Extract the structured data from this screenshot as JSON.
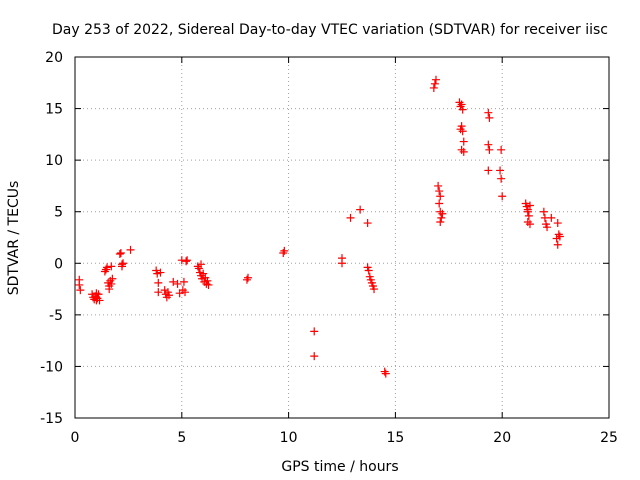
{
  "chart_data": {
    "type": "scatter",
    "title": "Day 253 of 2022, Sidereal Day-to-day VTEC variation (SDTVAR) for receiver iisc",
    "xlabel": "GPS time / hours",
    "ylabel": "SDTVAR / TECUs",
    "xlim": [
      0,
      25
    ],
    "ylim": [
      -15,
      20
    ],
    "xticks": [
      0,
      5,
      10,
      15,
      20,
      25
    ],
    "yticks": [
      -15,
      -10,
      -5,
      0,
      5,
      10,
      15,
      20
    ],
    "xtick_labels": [
      "0",
      "5",
      "10",
      "15",
      "20",
      "25"
    ],
    "ytick_labels": [
      "-15",
      "-10",
      "-5",
      "0",
      "5",
      "10",
      "15",
      "20"
    ],
    "grid": true,
    "marker": "+",
    "series": [
      {
        "name": "SDTVAR",
        "color": "#ff0000",
        "points": [
          [
            0.2,
            -1.6
          ],
          [
            0.2,
            -2.1
          ],
          [
            0.25,
            -2.6
          ],
          [
            0.8,
            -3.0
          ],
          [
            0.85,
            -3.3
          ],
          [
            0.9,
            -3.5
          ],
          [
            0.95,
            -3.2
          ],
          [
            1.0,
            -3.6
          ],
          [
            1.05,
            -3.4
          ],
          [
            1.0,
            -2.9
          ],
          [
            1.1,
            -3.0
          ],
          [
            1.15,
            -3.6
          ],
          [
            1.4,
            -0.8
          ],
          [
            1.45,
            -0.6
          ],
          [
            1.5,
            -0.4
          ],
          [
            1.55,
            -1.9
          ],
          [
            1.6,
            -2.2
          ],
          [
            1.6,
            -2.5
          ],
          [
            1.65,
            -1.7
          ],
          [
            1.7,
            -2.0
          ],
          [
            1.7,
            -0.3
          ],
          [
            1.75,
            -1.5
          ],
          [
            2.1,
            0.9
          ],
          [
            2.15,
            1.0
          ],
          [
            2.2,
            -0.1
          ],
          [
            2.25,
            0.0
          ],
          [
            2.2,
            -0.3
          ],
          [
            2.6,
            1.3
          ],
          [
            3.8,
            -0.7
          ],
          [
            3.85,
            -1.0
          ],
          [
            3.9,
            -1.9
          ],
          [
            3.9,
            -2.8
          ],
          [
            4.0,
            -0.9
          ],
          [
            4.2,
            -2.6
          ],
          [
            4.25,
            -3.0
          ],
          [
            4.3,
            -3.3
          ],
          [
            4.35,
            -2.8
          ],
          [
            4.4,
            -3.1
          ],
          [
            4.6,
            -1.8
          ],
          [
            4.8,
            -2.0
          ],
          [
            4.9,
            -2.9
          ],
          [
            5.0,
            0.3
          ],
          [
            5.05,
            -2.6
          ],
          [
            5.1,
            -1.8
          ],
          [
            5.15,
            -2.8
          ],
          [
            5.2,
            0.2
          ],
          [
            5.25,
            0.3
          ],
          [
            5.75,
            -0.3
          ],
          [
            5.8,
            -0.5
          ],
          [
            5.85,
            -0.9
          ],
          [
            5.9,
            -1.2
          ],
          [
            5.95,
            -1.5
          ],
          [
            6.0,
            -1.0
          ],
          [
            6.05,
            -1.8
          ],
          [
            6.1,
            -1.4
          ],
          [
            6.15,
            -2.0
          ],
          [
            6.2,
            -1.7
          ],
          [
            6.25,
            -2.1
          ],
          [
            5.9,
            -0.1
          ],
          [
            8.05,
            -1.6
          ],
          [
            8.1,
            -1.4
          ],
          [
            9.75,
            1.0
          ],
          [
            9.8,
            1.2
          ],
          [
            11.2,
            -6.6
          ],
          [
            11.2,
            -9.0
          ],
          [
            12.5,
            0.5
          ],
          [
            12.5,
            0.0
          ],
          [
            12.9,
            4.4
          ],
          [
            13.35,
            5.2
          ],
          [
            13.7,
            3.9
          ],
          [
            13.7,
            -0.4
          ],
          [
            13.75,
            -0.7
          ],
          [
            13.8,
            -1.3
          ],
          [
            13.85,
            -1.6
          ],
          [
            13.9,
            -1.9
          ],
          [
            13.95,
            -2.2
          ],
          [
            14.0,
            -2.5
          ],
          [
            14.5,
            -10.5
          ],
          [
            14.55,
            -10.7
          ],
          [
            16.8,
            17.0
          ],
          [
            16.85,
            17.4
          ],
          [
            16.9,
            17.8
          ],
          [
            17.0,
            7.5
          ],
          [
            17.05,
            7.0
          ],
          [
            17.1,
            6.5
          ],
          [
            17.05,
            5.8
          ],
          [
            17.1,
            5.0
          ],
          [
            17.15,
            4.4
          ],
          [
            17.1,
            4.0
          ],
          [
            17.2,
            4.8
          ],
          [
            18.0,
            15.6
          ],
          [
            18.05,
            15.2
          ],
          [
            18.1,
            15.4
          ],
          [
            18.15,
            14.9
          ],
          [
            18.1,
            13.3
          ],
          [
            18.05,
            13.0
          ],
          [
            18.15,
            12.8
          ],
          [
            18.2,
            11.8
          ],
          [
            18.1,
            11.0
          ],
          [
            18.2,
            10.8
          ],
          [
            19.35,
            14.6
          ],
          [
            19.4,
            14.1
          ],
          [
            19.35,
            11.5
          ],
          [
            19.4,
            11.0
          ],
          [
            19.35,
            9.0
          ],
          [
            19.95,
            11.0
          ],
          [
            19.9,
            9.0
          ],
          [
            19.95,
            8.2
          ],
          [
            20.0,
            6.5
          ],
          [
            21.1,
            5.8
          ],
          [
            21.15,
            5.5
          ],
          [
            21.2,
            5.0
          ],
          [
            21.25,
            4.6
          ],
          [
            21.2,
            4.0
          ],
          [
            21.3,
            3.8
          ],
          [
            21.2,
            5.2
          ],
          [
            21.3,
            5.6
          ],
          [
            21.95,
            5.0
          ],
          [
            22.0,
            4.4
          ],
          [
            22.05,
            3.8
          ],
          [
            22.1,
            3.5
          ],
          [
            22.3,
            4.4
          ],
          [
            22.6,
            3.9
          ],
          [
            22.65,
            2.8
          ],
          [
            22.55,
            2.4
          ],
          [
            22.6,
            1.8
          ],
          [
            22.7,
            2.6
          ]
        ]
      }
    ]
  }
}
